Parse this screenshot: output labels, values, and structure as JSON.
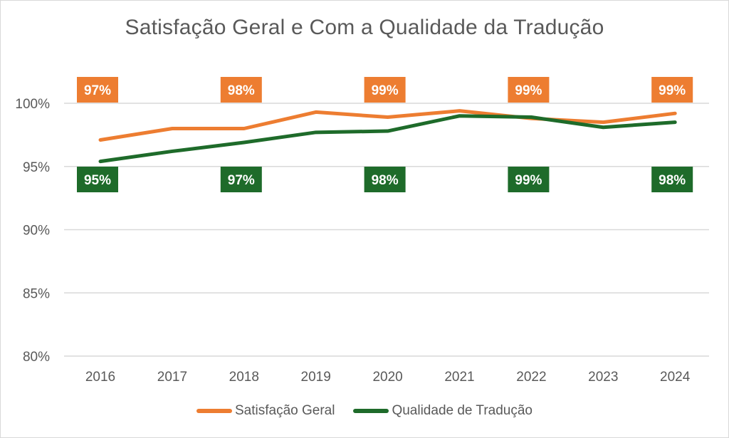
{
  "chart_data": {
    "type": "line",
    "title": "Satisfação Geral e Com a Qualidade da Tradução",
    "xlabel": "",
    "ylabel": "",
    "categories": [
      "2016",
      "2017",
      "2018",
      "2019",
      "2020",
      "2021",
      "2022",
      "2023",
      "2024"
    ],
    "ylim": [
      80,
      100
    ],
    "yticks": [
      "80%",
      "85%",
      "90%",
      "95%",
      "100%"
    ],
    "grid": true,
    "legend_position": "bottom",
    "series": [
      {
        "name": "Satisfação Geral",
        "color": "#ED7D31",
        "values": [
          97.1,
          98.0,
          98.0,
          99.3,
          98.9,
          99.4,
          98.8,
          98.5,
          99.2
        ],
        "data_labels": [
          {
            "category": "2016",
            "label": "97%"
          },
          {
            "category": "2018",
            "label": "98%"
          },
          {
            "category": "2020",
            "label": "99%"
          },
          {
            "category": "2022",
            "label": "99%"
          },
          {
            "category": "2024",
            "label": "99%"
          }
        ]
      },
      {
        "name": "Qualidade de Tradução",
        "color": "#1E6B2A",
        "values": [
          95.4,
          96.2,
          96.9,
          97.7,
          97.8,
          99.0,
          98.9,
          98.1,
          98.5
        ],
        "data_labels": [
          {
            "category": "2016",
            "label": "95%"
          },
          {
            "category": "2018",
            "label": "97%"
          },
          {
            "category": "2020",
            "label": "98%"
          },
          {
            "category": "2022",
            "label": "99%"
          },
          {
            "category": "2024",
            "label": "98%"
          }
        ]
      }
    ]
  },
  "legend": {
    "items": [
      "Satisfação Geral",
      "Qualidade de Tradução"
    ]
  }
}
